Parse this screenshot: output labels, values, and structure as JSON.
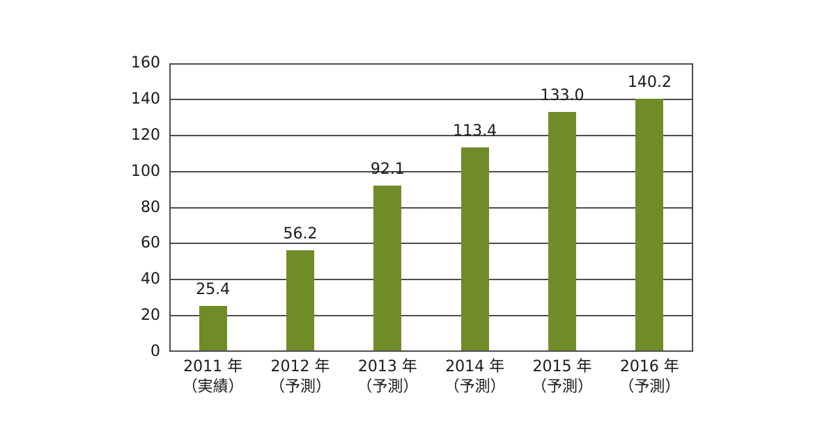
{
  "chart_data": {
    "type": "bar",
    "title": "",
    "categories": [
      "2011 年",
      "2012 年",
      "2013 年",
      "2014 年",
      "2015 年",
      "2016 年"
    ],
    "category_notes": [
      "（実績）",
      "（予測）",
      "（予測）",
      "（予測）",
      "（予測）",
      "（予測）"
    ],
    "values": [
      25.4,
      56.2,
      92.1,
      113.4,
      133.0,
      140.2
    ],
    "value_labels": [
      "25.4",
      "56.2",
      "92.1",
      "113.4",
      "133.0",
      "140.2"
    ],
    "ylim": [
      0,
      160
    ],
    "yticks": [
      0,
      20,
      40,
      60,
      80,
      100,
      120,
      140,
      160
    ],
    "grid": true,
    "legend": false,
    "xlabel": "",
    "ylabel": "",
    "bar_color": "#6F8C29",
    "grid_color": "#4D4D4D",
    "text_color": "#1A1A1A",
    "background_color": "#FFFFFF"
  }
}
